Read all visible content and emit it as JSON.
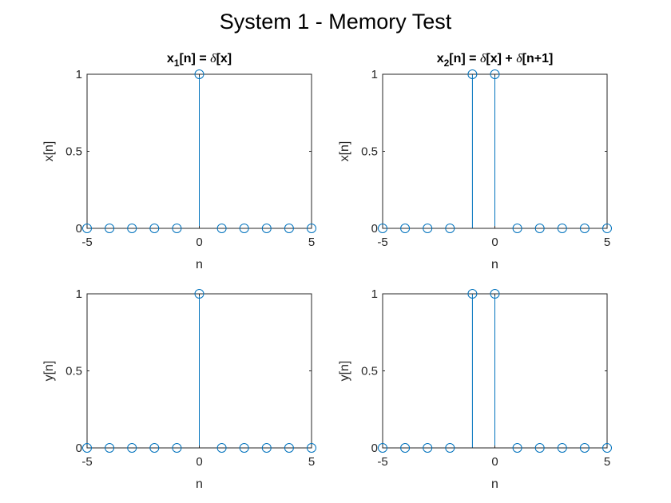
{
  "figure": {
    "title": "System 1 - Memory Test"
  },
  "colors": {
    "stem": "#0072BD",
    "axis": "#262626",
    "background": "#ffffff"
  },
  "chart_data": [
    {
      "type": "stem",
      "title_parts": [
        {
          "text": "x"
        },
        {
          "text": "1",
          "sub": true
        },
        {
          "text": "[n] = "
        },
        {
          "text": "δ",
          "italic": true
        },
        {
          "text": "[x]"
        }
      ],
      "xlabel": "n",
      "ylabel": "x[n]",
      "xlim": [
        -5,
        5
      ],
      "ylim": [
        0,
        1
      ],
      "xticks": [
        -5,
        0,
        5
      ],
      "yticks": [
        0,
        0.5,
        1
      ],
      "x": [
        -5,
        -4,
        -3,
        -2,
        -1,
        0,
        1,
        2,
        3,
        4,
        5
      ],
      "y": [
        0,
        0,
        0,
        0,
        0,
        1,
        0,
        0,
        0,
        0,
        0
      ]
    },
    {
      "type": "stem",
      "title_parts": [
        {
          "text": "x"
        },
        {
          "text": "2",
          "sub": true
        },
        {
          "text": "[n] = "
        },
        {
          "text": "δ",
          "italic": true
        },
        {
          "text": "[x] + "
        },
        {
          "text": "δ",
          "italic": true
        },
        {
          "text": "[n+1]"
        }
      ],
      "xlabel": "n",
      "ylabel": "x[n]",
      "xlim": [
        -5,
        5
      ],
      "ylim": [
        0,
        1
      ],
      "xticks": [
        -5,
        0,
        5
      ],
      "yticks": [
        0,
        0.5,
        1
      ],
      "x": [
        -5,
        -4,
        -3,
        -2,
        -1,
        0,
        1,
        2,
        3,
        4,
        5
      ],
      "y": [
        0,
        0,
        0,
        0,
        1,
        1,
        0,
        0,
        0,
        0,
        0
      ]
    },
    {
      "type": "stem",
      "title_parts": [],
      "xlabel": "n",
      "ylabel": "y[n]",
      "xlim": [
        -5,
        5
      ],
      "ylim": [
        0,
        1
      ],
      "xticks": [
        -5,
        0,
        5
      ],
      "yticks": [
        0,
        0.5,
        1
      ],
      "x": [
        -5,
        -4,
        -3,
        -2,
        -1,
        0,
        1,
        2,
        3,
        4,
        5
      ],
      "y": [
        0,
        0,
        0,
        0,
        0,
        1,
        0,
        0,
        0,
        0,
        0
      ]
    },
    {
      "type": "stem",
      "title_parts": [],
      "xlabel": "n",
      "ylabel": "y[n]",
      "xlim": [
        -5,
        5
      ],
      "ylim": [
        0,
        1
      ],
      "xticks": [
        -5,
        0,
        5
      ],
      "yticks": [
        0,
        0.5,
        1
      ],
      "x": [
        -5,
        -4,
        -3,
        -2,
        -1,
        0,
        1,
        2,
        3,
        4,
        5
      ],
      "y": [
        0,
        0,
        0,
        0,
        1,
        1,
        0,
        0,
        0,
        0,
        0
      ]
    }
  ]
}
